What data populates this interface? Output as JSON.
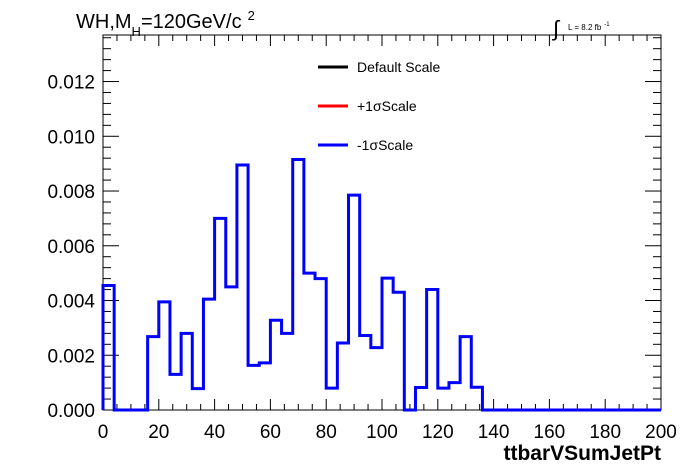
{
  "chart_data": {
    "type": "line",
    "title_main": "WH,M",
    "title_sub": "H",
    "title_rest": "=120GeV/c",
    "title_sup": "2",
    "lumi_text": "L = 8.2 fb",
    "lumi_sup": "-1",
    "xlabel": "ttbarVSumJetPt",
    "ylabel": "",
    "xlim": [
      0,
      200
    ],
    "ylim": [
      0,
      0.0137
    ],
    "x_ticks": [
      "0",
      "20",
      "40",
      "60",
      "80",
      "100",
      "120",
      "140",
      "160",
      "180",
      "200"
    ],
    "y_ticks": [
      "0.000",
      "0.002",
      "0.004",
      "0.006",
      "0.008",
      "0.010",
      "0.012"
    ],
    "bin_width": 4,
    "legend": [
      {
        "name": "Default Scale",
        "color": "#000000"
      },
      {
        "name": "+1σScale",
        "color": "#ff0000"
      },
      {
        "name": "-1σScale",
        "color": "#0000ff"
      }
    ],
    "series": [
      {
        "name": "-1σScale",
        "color": "#0000ff",
        "values": [
          0.00455,
          0.0,
          0.0,
          0.0,
          0.00268,
          0.00395,
          0.0013,
          0.0028,
          0.00078,
          0.00405,
          0.007,
          0.0045,
          0.00895,
          0.00163,
          0.00172,
          0.00328,
          0.0028,
          0.00915,
          0.005,
          0.0048,
          0.0008,
          0.00245,
          0.00785,
          0.00272,
          0.00228,
          0.00482,
          0.0043,
          0.0,
          0.00082,
          0.0044,
          0.0008,
          0.001,
          0.00268,
          0.00083,
          0.0,
          0.0,
          0.0,
          0.0,
          0.0,
          0.0,
          0.0,
          0.0,
          0.0,
          0.0,
          0.0,
          0.0,
          0.0,
          0.0,
          0.0,
          0.0
        ]
      }
    ]
  }
}
